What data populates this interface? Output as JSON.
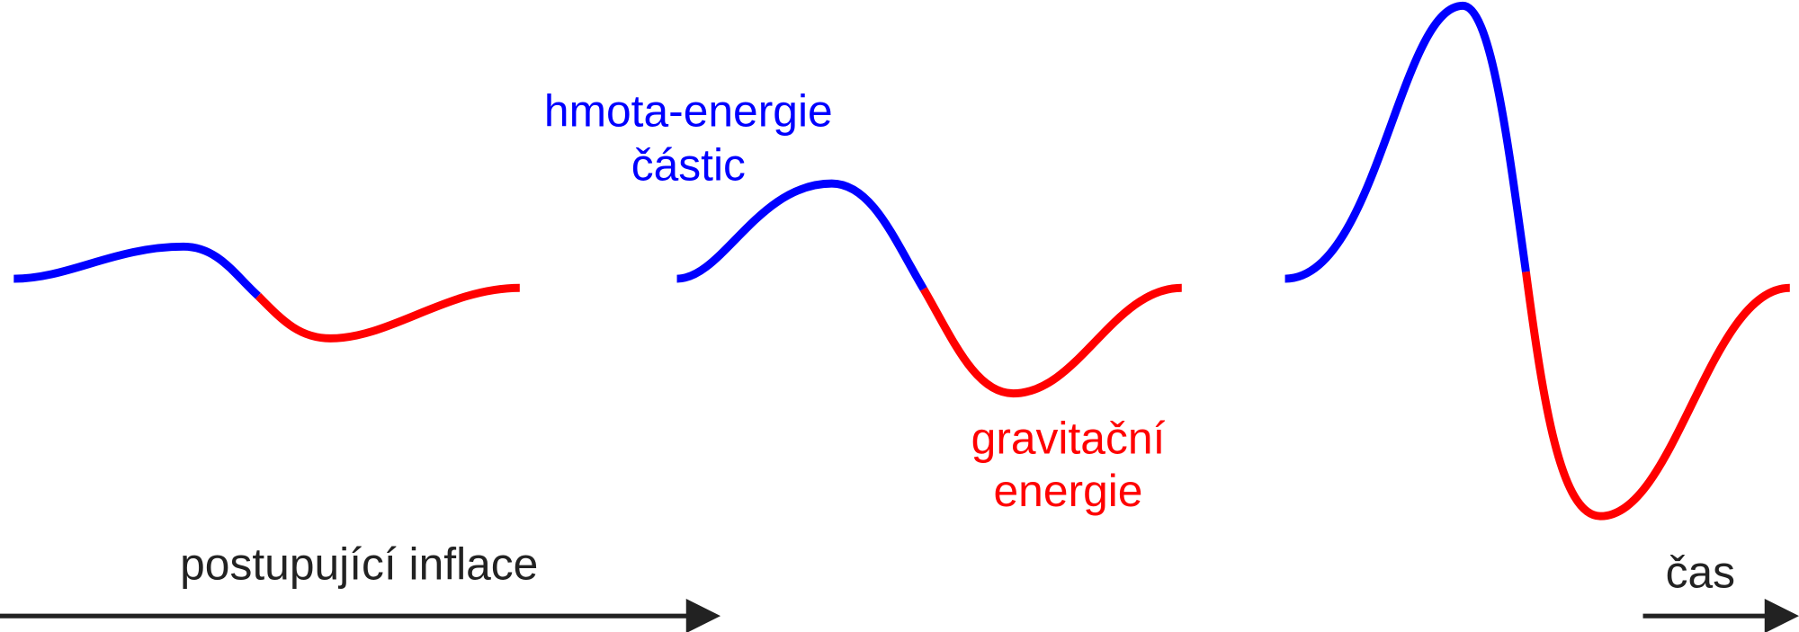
{
  "labels": {
    "matter_line1": "hmota-energie",
    "matter_line2": "částic",
    "gravity_line1": "gravitační",
    "gravity_line2": "energie",
    "inflation": "postupující inflace",
    "time": "čas"
  }
}
